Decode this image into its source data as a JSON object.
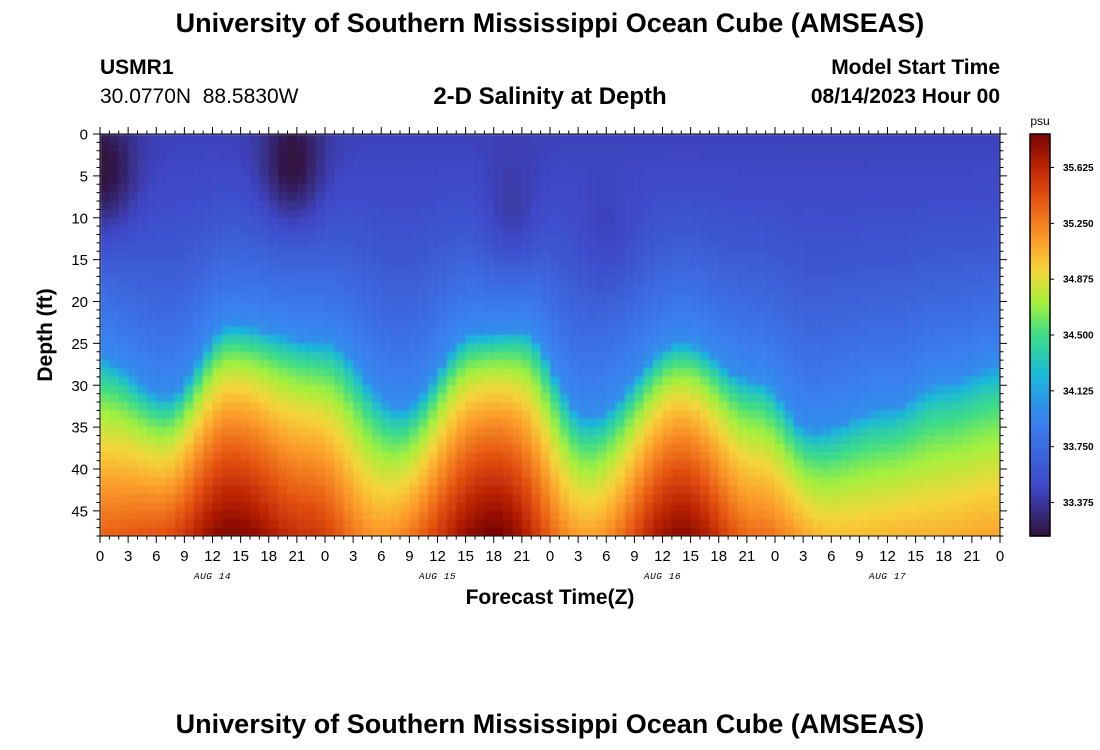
{
  "header": {
    "title": "University of Southern Mississippi Ocean Cube (AMSEAS)",
    "station_id": "USMR1",
    "coordinates": "30.0770N  88.5830W",
    "plot_title": "2-D Salinity at Depth",
    "model_start_label": "Model Start Time",
    "model_start_value": "08/14/2023 Hour 00"
  },
  "footer": {
    "title": "University of Southern Mississippi Ocean Cube (AMSEAS)"
  },
  "colors": {
    "background": "#ffffff",
    "text": "#000000"
  },
  "chart_data": {
    "type": "heatmap",
    "title": "2-D Salinity at Depth",
    "xlabel": "Forecast Time(Z)",
    "ylabel": "Depth (ft)",
    "x_hours_range": [
      0,
      96
    ],
    "x_tick_labels": [
      "0",
      "3",
      "6",
      "9",
      "12",
      "15",
      "18",
      "21",
      "0",
      "3",
      "6",
      "9",
      "12",
      "15",
      "18",
      "21",
      "0",
      "3",
      "6",
      "9",
      "12",
      "15",
      "18",
      "21",
      "0",
      "3",
      "6",
      "9",
      "12",
      "15",
      "18",
      "21",
      "0"
    ],
    "date_labels": [
      {
        "label": "AUG 14",
        "hour": 12
      },
      {
        "label": "AUG 15",
        "hour": 36
      },
      {
        "label": "AUG 16",
        "hour": 60
      },
      {
        "label": "AUG 17",
        "hour": 84
      }
    ],
    "ylim": [
      0,
      48
    ],
    "y_ticks": [
      0,
      5,
      10,
      15,
      20,
      25,
      30,
      35,
      40,
      45
    ],
    "colorbar": {
      "unit": "psu",
      "range": [
        33.15,
        35.85
      ],
      "ticks": [
        "35.625",
        "35.250",
        "34.875",
        "34.500",
        "34.125",
        "33.750",
        "33.375"
      ],
      "tick_values": [
        35.625,
        35.25,
        34.875,
        34.5,
        34.125,
        33.75,
        33.375
      ],
      "stops": [
        {
          "v": 0.0,
          "c": "#30123b"
        },
        {
          "v": 0.12,
          "c": "#3f47c6"
        },
        {
          "v": 0.28,
          "c": "#3a7ff0"
        },
        {
          "v": 0.4,
          "c": "#1bb8da"
        },
        {
          "v": 0.5,
          "c": "#3ddc87"
        },
        {
          "v": 0.58,
          "c": "#a4f03c"
        },
        {
          "v": 0.66,
          "c": "#f5d53a"
        },
        {
          "v": 0.74,
          "c": "#fb9a2a"
        },
        {
          "v": 0.84,
          "c": "#e45210"
        },
        {
          "v": 0.93,
          "c": "#b41f02"
        },
        {
          "v": 1.0,
          "c": "#7a0403"
        }
      ]
    },
    "halocline_depth_ft_by_hour": [
      {
        "hour": 0,
        "depth": 34.0
      },
      {
        "hour": 7,
        "depth": 38.5
      },
      {
        "hour": 14,
        "depth": 30.0
      },
      {
        "hour": 24,
        "depth": 32.0
      },
      {
        "hour": 32,
        "depth": 40.0
      },
      {
        "hour": 40,
        "depth": 31.0
      },
      {
        "hour": 45,
        "depth": 30.5
      },
      {
        "hour": 52,
        "depth": 41.0
      },
      {
        "hour": 62,
        "depth": 32.0
      },
      {
        "hour": 70,
        "depth": 36.5
      },
      {
        "hour": 76,
        "depth": 42.5
      },
      {
        "hour": 84,
        "depth": 40.0
      },
      {
        "hour": 90,
        "depth": 37.0
      },
      {
        "hour": 96,
        "depth": 35.0
      }
    ],
    "bottom_max_salinity_by_hour": [
      {
        "hour": 0,
        "value": 35.35
      },
      {
        "hour": 6,
        "value": 35.4
      },
      {
        "hour": 14,
        "value": 35.82
      },
      {
        "hour": 22,
        "value": 35.55
      },
      {
        "hour": 30,
        "value": 35.15
      },
      {
        "hour": 42,
        "value": 35.85
      },
      {
        "hour": 52,
        "value": 35.1
      },
      {
        "hour": 62,
        "value": 35.78
      },
      {
        "hour": 70,
        "value": 35.3
      },
      {
        "hour": 78,
        "value": 35.0
      },
      {
        "hour": 88,
        "value": 35.05
      },
      {
        "hour": 96,
        "value": 35.1
      }
    ],
    "surface_min_salinity_features": [
      {
        "hour": 0.5,
        "depth": 4,
        "value": 33.15
      },
      {
        "hour": 20.5,
        "depth": 3,
        "value": 33.15
      },
      {
        "hour": 44,
        "depth": 8,
        "value": 33.4
      },
      {
        "hour": 54,
        "depth": 10,
        "value": 33.45
      }
    ]
  }
}
